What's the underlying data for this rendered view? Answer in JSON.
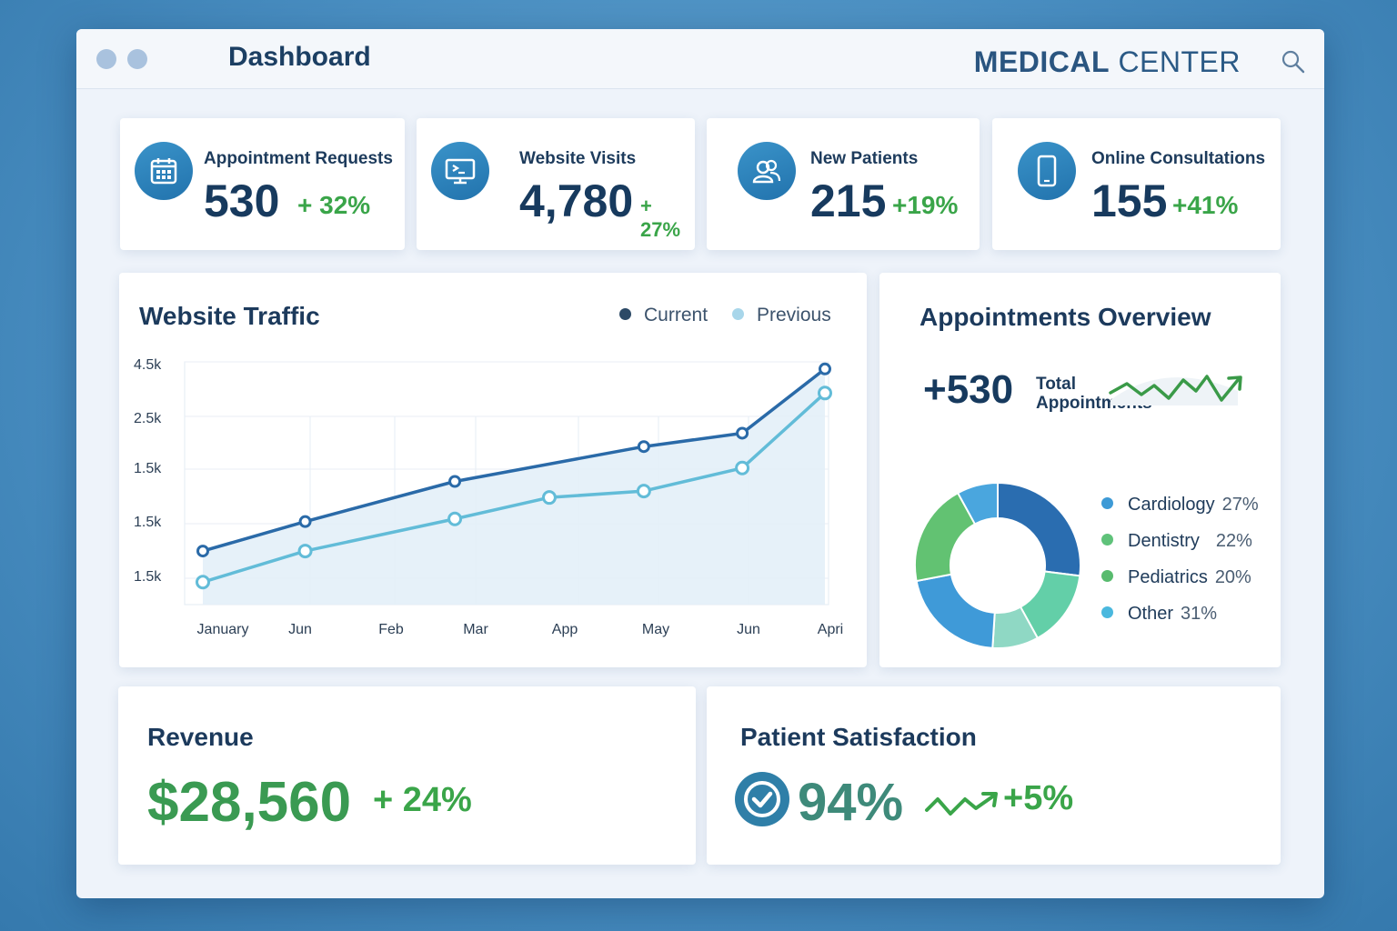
{
  "header": {
    "title": "Dashboard",
    "brand_bold": "MEDICAL",
    "brand_light": "CENTER"
  },
  "stats": [
    {
      "label": "Appointment Requests",
      "value": "530",
      "change": "+ 32%",
      "icon": "calendar-icon"
    },
    {
      "label": "Website Visits",
      "value": "4,780",
      "change": "+ 27%",
      "icon": "monitor-icon"
    },
    {
      "label": "New Patients",
      "value": "215",
      "change": "+19%",
      "icon": "patients-icon"
    },
    {
      "label": "Online Consultations",
      "value": "155",
      "change": "+41%",
      "icon": "phone-icon"
    }
  ],
  "traffic": {
    "title": "Website Traffic",
    "legend_current": "Current",
    "legend_previous": "Previous"
  },
  "chart_data": {
    "type": "line",
    "title": "Website Traffic",
    "x": [
      "January",
      "Jun",
      "Feb",
      "Mar",
      "App",
      "May",
      "Jun",
      "Apri"
    ],
    "y_ticks": [
      "4.5k",
      "2.5k",
      "1.5k",
      "1.5k",
      "1.5k"
    ],
    "series": [
      {
        "name": "Current",
        "color": "#2a6aa8",
        "values": [
          1.0,
          1.55,
          null,
          2.3,
          null,
          2.95,
          3.2,
          4.4
        ]
      },
      {
        "name": "Previous",
        "color": "#62bcd8",
        "values": [
          0.42,
          1.0,
          null,
          1.6,
          2.0,
          2.12,
          2.55,
          3.95
        ]
      }
    ],
    "current_x": [
      0,
      1.3,
      3.2,
      5.6,
      6.85,
      7.9
    ],
    "current_y": [
      1.0,
      1.55,
      2.3,
      2.95,
      3.2,
      4.4
    ],
    "previous_x": [
      0,
      1.3,
      3.2,
      4.4,
      5.6,
      6.85,
      7.9
    ],
    "previous_y": [
      0.42,
      1.0,
      1.6,
      2.0,
      2.12,
      2.55,
      3.95
    ],
    "ylim": [
      0,
      4.6
    ]
  },
  "appointments": {
    "title": "Appointments Overview",
    "total_value": "+530",
    "total_label_line1": "Total",
    "total_label_line2": "Appointments",
    "departments": [
      {
        "name": "Cardiology",
        "pct": "27%",
        "color": "#3d9ad6",
        "value": 27
      },
      {
        "name": "Dentistry",
        "pct": "22%",
        "color": "#5fc27a",
        "value": 22
      },
      {
        "name": "Pediatrics",
        "pct": "20%",
        "color": "#58bb6e",
        "value": 20
      },
      {
        "name": "Other",
        "pct": "31%",
        "color": "#4ab8de",
        "value": 31
      }
    ]
  },
  "revenue": {
    "title": "Revenue",
    "value": "$28,560",
    "change": "+ 24%"
  },
  "satisfaction": {
    "title": "Patient Satisfaction",
    "value": "94%",
    "change": "+5%"
  }
}
